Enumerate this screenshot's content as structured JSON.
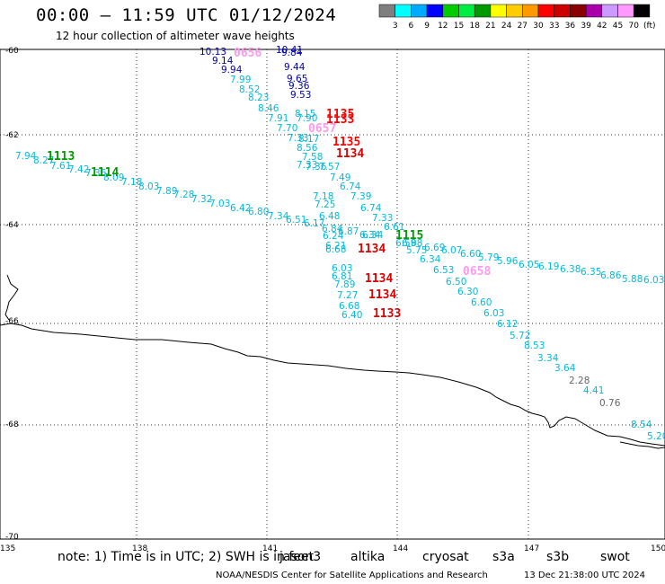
{
  "header": {
    "title": "00:00 – 11:59 UTC 01/12/2024",
    "subtitle": "12 hour collection of altimeter wave heights"
  },
  "legend": {
    "unit": "(ft)",
    "bins": [
      {
        "label": "3",
        "color": "#7f7f7f"
      },
      {
        "label": "6",
        "color": "#00ffff"
      },
      {
        "label": "9",
        "color": "#00aaff"
      },
      {
        "label": "12",
        "color": "#0000ff"
      },
      {
        "label": "15",
        "color": "#00cc00"
      },
      {
        "label": "18",
        "color": "#00ee44"
      },
      {
        "label": "21",
        "color": "#009900"
      },
      {
        "label": "24",
        "color": "#ffff00"
      },
      {
        "label": "27",
        "color": "#ffcc00"
      },
      {
        "label": "30",
        "color": "#ff9900"
      },
      {
        "label": "33",
        "color": "#ff0000"
      },
      {
        "label": "36",
        "color": "#cc0000"
      },
      {
        "label": "39",
        "color": "#880000"
      },
      {
        "label": "42",
        "color": "#aa00aa"
      },
      {
        "label": "45",
        "color": "#cc99ff"
      },
      {
        "label": "70",
        "color": "#ff99ff"
      },
      {
        "label": "",
        "color": "#000000"
      }
    ]
  },
  "axes": {
    "lat_labels": [
      "-60",
      "-62",
      "-64",
      "-66",
      "-68",
      "-70"
    ],
    "lon_labels": [
      "135",
      "138",
      "141",
      "144",
      "147",
      "150"
    ]
  },
  "tracks": [
    {
      "time": "0656",
      "color": "#ff99ee"
    },
    {
      "time": "1135",
      "color": "#ff0000"
    },
    {
      "time": "1133",
      "color": "#ff0000"
    },
    {
      "time": "0657",
      "color": "#ff99ee"
    },
    {
      "time": "1135",
      "color": "#ff0000"
    },
    {
      "time": "1134",
      "color": "#dd0000"
    },
    {
      "time": "1113",
      "color": "#009900"
    },
    {
      "time": "1114",
      "color": "#009900"
    },
    {
      "time": "1115",
      "color": "#009900"
    },
    {
      "time": "1134",
      "color": "#dd0000"
    },
    {
      "time": "0658",
      "color": "#ff99ee"
    },
    {
      "time": "1134",
      "color": "#dd0000"
    },
    {
      "time": "1134",
      "color": "#dd0000"
    },
    {
      "time": "1133",
      "color": "#dd0000"
    }
  ],
  "wave_heights_ft": {
    "blue_track": [
      "10.13",
      "9.14",
      "9.94",
      "10.41",
      "9.84",
      "9.44",
      "9.65",
      "9.36",
      "9.53"
    ],
    "cyan_track_a": [
      "7.99",
      "8.52",
      "8.23",
      "8.46",
      "7.91",
      "7.70",
      "7.33",
      "8.15",
      "7.90",
      "8.17",
      "8.56",
      "7.58",
      "7.33",
      "7.36",
      "7.57",
      "7.49",
      "6.74",
      "7.39",
      "6.74",
      "7.33",
      "6.61",
      "6.34",
      "6.59",
      "6.34",
      "6.53",
      "6.50",
      "6.30",
      "6.60",
      "6.03",
      "6.12",
      "5.72",
      "8.53",
      "3.34",
      "3.64",
      "4.41",
      "8.54",
      "5.20"
    ],
    "cyan_track_b": [
      "7.94",
      "8.27",
      "7.61",
      "7.42",
      "7.36",
      "8.09",
      "7.18",
      "8.03",
      "7.89",
      "7.28",
      "7.32",
      "7.03",
      "6.42",
      "6.80",
      "7.34",
      "6.51",
      "6.17",
      "7.18",
      "7.25",
      "6.48",
      "6.84",
      "6.24",
      "6.87",
      "6.34",
      "6.21",
      "6.68",
      "6.88",
      "5.75",
      "6.69",
      "6.07",
      "6.60",
      "5.79",
      "5.96",
      "6.05",
      "6.19",
      "6.38",
      "6.35",
      "6.86",
      "5.88",
      "6.03"
    ],
    "cyan_track_c": [
      "6.03",
      "6.81",
      "7.89",
      "7.27",
      "6.68",
      "6.40"
    ],
    "gray_track": [
      "2.28",
      "0.76"
    ]
  },
  "footer": {
    "note": "note: 1) Time is in UTC; 2) SWH is in feet",
    "satellites": [
      {
        "name": "jason3",
        "color": "#009900"
      },
      {
        "name": "altika",
        "color": "#ff9900"
      },
      {
        "name": "cryosat",
        "color": "#ff0000"
      },
      {
        "name": "s3a",
        "color": "#aa0000"
      },
      {
        "name": "s3b",
        "color": "#cc99ff"
      },
      {
        "name": "swot",
        "color": "#ff99ff"
      }
    ],
    "credit": "NOAA/NESDIS Center for Satellite Applications and Research",
    "timestamp": "13 Dec 21:38:00 UTC 2024"
  }
}
